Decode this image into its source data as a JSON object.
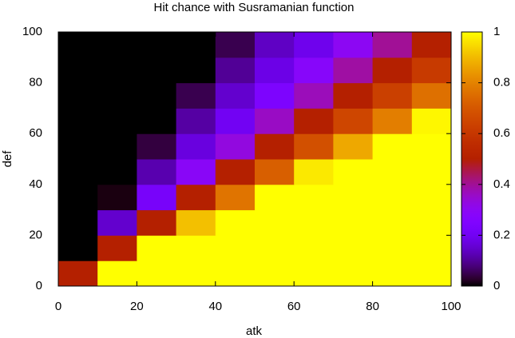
{
  "chart_data": {
    "type": "heatmap",
    "title": "Hit chance with Susramanian function",
    "xlabel": "atk",
    "ylabel": "def",
    "x": [
      5,
      15,
      25,
      35,
      45,
      55,
      65,
      75,
      85,
      95
    ],
    "y": [
      5,
      15,
      25,
      35,
      45,
      55,
      65,
      75,
      85,
      95
    ],
    "z": [
      [
        0.5,
        1,
        1,
        1,
        1,
        1,
        1,
        1,
        1,
        1
      ],
      [
        0,
        0.5,
        1,
        1,
        1,
        1,
        1,
        1,
        1,
        1
      ],
      [
        0,
        0.15,
        0.5,
        0.91,
        1,
        1,
        1,
        1,
        1,
        1
      ],
      [
        0,
        0.01,
        0.22,
        0.5,
        0.77,
        1,
        1,
        1,
        1,
        1
      ],
      [
        0,
        0,
        0.12,
        0.29,
        0.5,
        0.72,
        0.97,
        1,
        1,
        1
      ],
      [
        0,
        0,
        0.04,
        0.17,
        0.33,
        0.5,
        0.68,
        0.87,
        1,
        1
      ],
      [
        0,
        0,
        0,
        0.11,
        0.2,
        0.36,
        0.5,
        0.65,
        0.79,
        0.99
      ],
      [
        0,
        0,
        0,
        0.05,
        0.15,
        0.24,
        0.37,
        0.5,
        0.63,
        0.76
      ],
      [
        0,
        0,
        0,
        0,
        0.1,
        0.18,
        0.28,
        0.39,
        0.5,
        0.61
      ],
      [
        0,
        0,
        0,
        0,
        0.05,
        0.14,
        0.19,
        0.3,
        0.4,
        0.5
      ]
    ],
    "xlim": [
      0,
      100
    ],
    "xticks": [
      0,
      20,
      40,
      60,
      80,
      100
    ],
    "ylim": [
      0,
      100
    ],
    "yticks": [
      0,
      20,
      40,
      60,
      80,
      100
    ],
    "zlim": [
      0,
      1
    ],
    "zticks": [
      0,
      0.2,
      0.4,
      0.6,
      0.8,
      1
    ]
  }
}
